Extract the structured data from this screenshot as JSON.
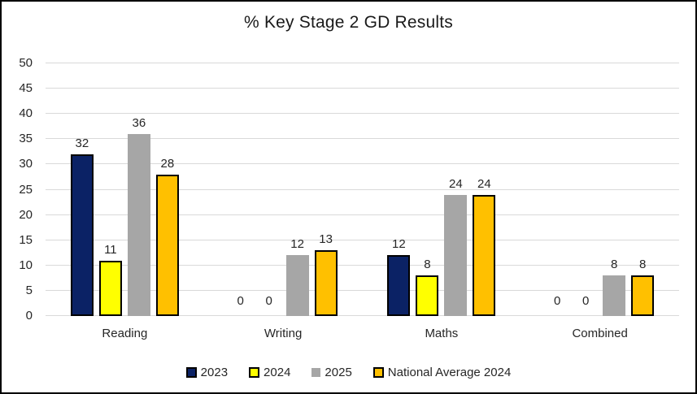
{
  "window": {
    "background": "#ffffff",
    "border_color": "#000000"
  },
  "chart_data": {
    "type": "bar",
    "title": "% Key Stage 2 GD Results",
    "xlabel": "",
    "ylabel": "",
    "categories": [
      "Reading",
      "Writing",
      "Maths",
      "Combined"
    ],
    "series": [
      {
        "name": "2023",
        "color": "#0b2265",
        "border": "#000000",
        "values": [
          32,
          0,
          12,
          0
        ]
      },
      {
        "name": "2024",
        "color": "#ffff00",
        "border": "#000000",
        "values": [
          11,
          0,
          8,
          0
        ]
      },
      {
        "name": "2025",
        "color": "#a6a6a6",
        "border": null,
        "values": [
          36,
          12,
          24,
          8
        ]
      },
      {
        "name": "National Average 2024",
        "color": "#ffc000",
        "border": "#000000",
        "values": [
          28,
          13,
          24,
          8
        ]
      }
    ],
    "ylim": [
      0,
      50
    ],
    "ytick_step": 5,
    "grid": true,
    "gridline_color": "#d9d9d9",
    "axis_line_color": "#d9d9d9",
    "text_color": "#262626",
    "data_labels": true,
    "legend_position": "bottom"
  }
}
